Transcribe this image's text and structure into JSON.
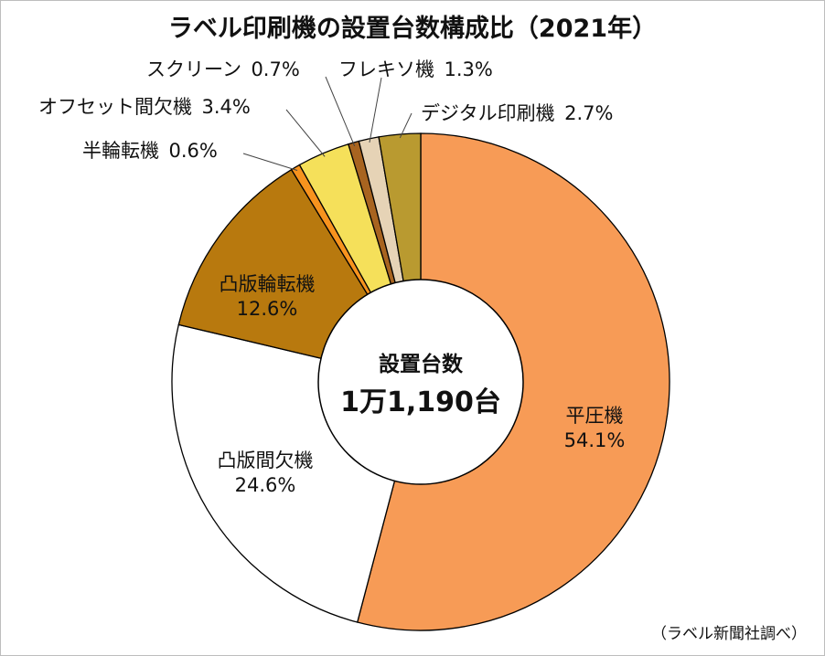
{
  "chart_data": {
    "type": "pie",
    "title": "ラベル印刷機の設置台数構成比（2021年）",
    "center_label": "設置台数",
    "center_value": "1万1,190台",
    "source": "（ラベル新聞社調べ）",
    "unit": "%",
    "slices": [
      {
        "name": "平圧機",
        "value": 54.1,
        "value_text": "54.1%",
        "color": "#f79b56"
      },
      {
        "name": "凸版間欠機",
        "value": 24.6,
        "value_text": "24.6%",
        "color": "#ffffff"
      },
      {
        "name": "凸版輪転機",
        "value": 12.6,
        "value_text": "12.6%",
        "color": "#b8790e"
      },
      {
        "name": "半輪転機",
        "value": 0.6,
        "value_text": "0.6%",
        "color": "#f7931e"
      },
      {
        "name": "オフセット間欠機",
        "value": 3.4,
        "value_text": "3.4%",
        "color": "#f5e05a"
      },
      {
        "name": "スクリーン",
        "value": 0.7,
        "value_text": "0.7%",
        "color": "#a86420"
      },
      {
        "name": "フレキソ機",
        "value": 1.3,
        "value_text": "1.3%",
        "color": "#e6d3b6"
      },
      {
        "name": "デジタル印刷機",
        "value": 2.7,
        "value_text": "2.7%",
        "color": "#b99a30"
      }
    ]
  }
}
